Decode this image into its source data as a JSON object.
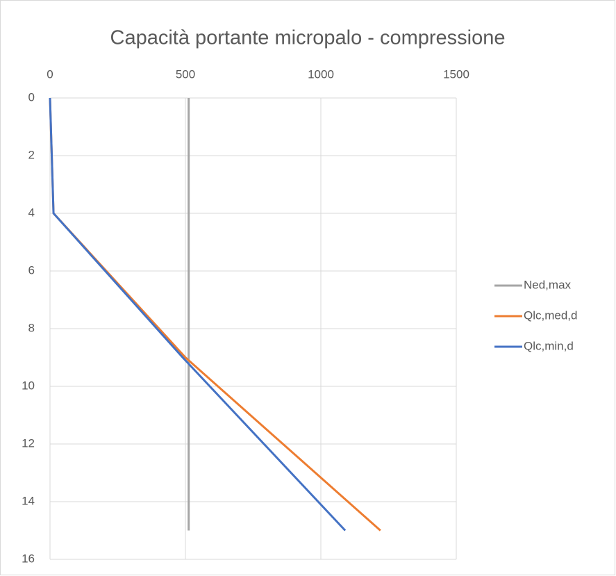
{
  "chart_data": {
    "type": "line",
    "title": "Capacità portante micropalo - compressione",
    "xlim": [
      0,
      1500
    ],
    "xticks": [
      0,
      500,
      1000,
      1500
    ],
    "ylim": [
      0,
      16
    ],
    "yticks": [
      0,
      2,
      4,
      6,
      8,
      10,
      12,
      14,
      16
    ],
    "y_inverted": true,
    "x_axis_position": "top",
    "grid": true,
    "legend": "right",
    "series": [
      {
        "name": "Ned,max",
        "color": "#a5a5a5",
        "x": [
          512,
          512
        ],
        "y": [
          0,
          15
        ]
      },
      {
        "name": "Qlc,med,d",
        "color": "#ed7d31",
        "x": [
          0,
          13,
          500,
          1220
        ],
        "y": [
          0,
          4,
          9,
          15
        ]
      },
      {
        "name": "Qlc,min,d",
        "color": "#4472c4",
        "x": [
          0,
          13,
          490,
          1090
        ],
        "y": [
          0,
          4,
          9,
          15
        ]
      }
    ]
  }
}
